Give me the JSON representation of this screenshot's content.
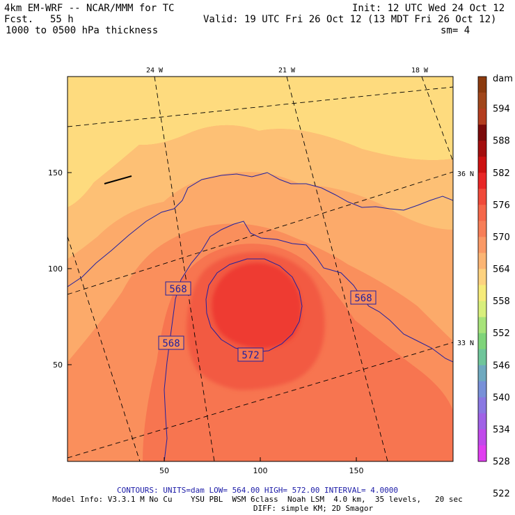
{
  "header": {
    "model_line": "4km EM-WRF -- NCAR/MMM for TC",
    "forecast_label": "Fcst.",
    "forecast_hours": "55 h",
    "field_title": "1000 to 0500 hPa thickness",
    "init_time": "Init: 12 UTC Wed 24 Oct 12",
    "valid_time": "Valid: 19 UTC Fri 26 Oct 12 (13 MDT Fri 26 Oct 12)",
    "smoothing": "sm= 4"
  },
  "map": {
    "lon_labels": [
      "24 W",
      "21 W",
      "18 W"
    ],
    "lat_labels": [
      "36 N",
      "33 N"
    ],
    "grid_x_ticks": [
      "50",
      "100",
      "150"
    ],
    "grid_y_ticks": [
      "150",
      "100",
      "50"
    ],
    "contour_labels": [
      "568",
      "568",
      "568",
      "572"
    ]
  },
  "colorbar": {
    "units": "dam",
    "levels": [
      "594",
      "588",
      "582",
      "576",
      "570",
      "564",
      "558",
      "552",
      "546",
      "540",
      "534",
      "528",
      "522"
    ],
    "colors": [
      "#8b3a0f",
      "#a0461b",
      "#b33d1f",
      "#7a0a0a",
      "#a30d0d",
      "#cc1111",
      "#e82626",
      "#f04a3a",
      "#f5674a",
      "#f77e58",
      "#fa9966",
      "#fbb574",
      "#fdd27f",
      "#f6eb7a",
      "#d8ef7c",
      "#a7e37a",
      "#7fd47a",
      "#6fc59a",
      "#6fa9bf",
      "#7890d8",
      "#8a78e2",
      "#a062e6",
      "#c04aea",
      "#e03ef0"
    ]
  },
  "footer": {
    "contour_info": "CONTOURS:  UNITS=dam  LOW=  564.00     HIGH=  572.00     INTERVAL=   4.0000",
    "model_info": "Model Info: V3.3.1 M No Cu    YSU PBL  WSM 6class  Noah LSM  4.0 km,  35 levels,   20 sec",
    "diff_info": "DIFF: simple KM; 2D Smagor"
  },
  "theme": {
    "field_colors": {
      "c558": "#fedb7e",
      "c561": "#fdc075",
      "c564": "#fcaa6a",
      "c567": "#fa8f5c",
      "c570": "#f77550",
      "c573": "#f25a42",
      "c576": "#ee3b33"
    },
    "contour_color": "#2020a0"
  }
}
